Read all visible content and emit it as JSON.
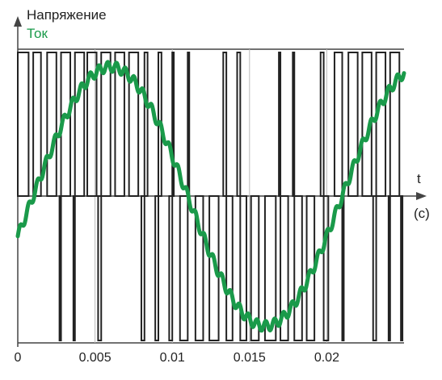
{
  "chart_data": {
    "type": "line",
    "ylabel_voltage": "Напряжение",
    "ylabel_current": "Ток",
    "xlabel": "t",
    "xunit": "(c)",
    "xlim": [
      0,
      0.025
    ],
    "xticks": [
      0,
      0.005,
      0.01,
      0.015,
      0.02
    ],
    "xtick_labels": [
      "0",
      "0.005",
      "0.01",
      "0.015",
      "0.02"
    ],
    "ylim": [
      -1,
      1
    ],
    "colors": {
      "voltage": "#222222",
      "current": "#1a9a4a",
      "axes": "#444444"
    },
    "series": [
      {
        "name": "Напряжение",
        "type": "pwm",
        "pulses": [
          [
            0.0,
            0.0007,
            1
          ],
          [
            0.001,
            0.0015,
            1
          ],
          [
            0.0019,
            0.0025,
            1
          ],
          [
            0.0027,
            0.0028,
            -1
          ],
          [
            0.0028,
            0.0034,
            1
          ],
          [
            0.0036,
            0.0037,
            -1
          ],
          [
            0.0037,
            0.0043,
            1
          ],
          [
            0.0045,
            0.0051,
            1
          ],
          [
            0.0052,
            0.0054,
            -1
          ],
          [
            0.0054,
            0.006,
            1
          ],
          [
            0.0063,
            0.0069,
            1
          ],
          [
            0.0072,
            0.0078,
            1
          ],
          [
            0.008,
            0.0082,
            -1
          ],
          [
            0.0082,
            0.0084,
            1
          ],
          [
            0.0089,
            0.0091,
            -1
          ],
          [
            0.0091,
            0.0093,
            1
          ],
          [
            0.0098,
            0.01,
            -1
          ],
          [
            0.01,
            0.0101,
            1
          ],
          [
            0.0105,
            0.011,
            -1
          ],
          [
            0.011,
            0.0111,
            1
          ],
          [
            0.0115,
            0.012,
            -1
          ],
          [
            0.0124,
            0.013,
            -1
          ],
          [
            0.0133,
            0.0135,
            1
          ],
          [
            0.0135,
            0.0139,
            -1
          ],
          [
            0.0142,
            0.0144,
            1
          ],
          [
            0.0144,
            0.0148,
            -1
          ],
          [
            0.0151,
            0.0156,
            -1
          ],
          [
            0.016,
            0.0167,
            -1
          ],
          [
            0.0169,
            0.017,
            1
          ],
          [
            0.017,
            0.0175,
            -1
          ],
          [
            0.0178,
            0.0179,
            1
          ],
          [
            0.0179,
            0.0184,
            -1
          ],
          [
            0.0187,
            0.0192,
            -1
          ],
          [
            0.0196,
            0.0198,
            1
          ],
          [
            0.0198,
            0.0201,
            -1
          ],
          [
            0.0205,
            0.021,
            1
          ],
          [
            0.021,
            0.0211,
            -1
          ],
          [
            0.0214,
            0.022,
            1
          ],
          [
            0.0223,
            0.0229,
            1
          ],
          [
            0.023,
            0.0232,
            -1
          ],
          [
            0.0232,
            0.0238,
            1
          ],
          [
            0.024,
            0.0241,
            -1
          ],
          [
            0.0241,
            0.0247,
            1
          ],
          [
            0.0248,
            0.0249,
            -1
          ]
        ]
      },
      {
        "name": "Ток",
        "type": "sine_with_ripple",
        "amplitude": 0.9,
        "frequency": 50,
        "phase_deg": -18,
        "ripple_amplitude": 0.035,
        "ripple_count": 44
      }
    ]
  }
}
